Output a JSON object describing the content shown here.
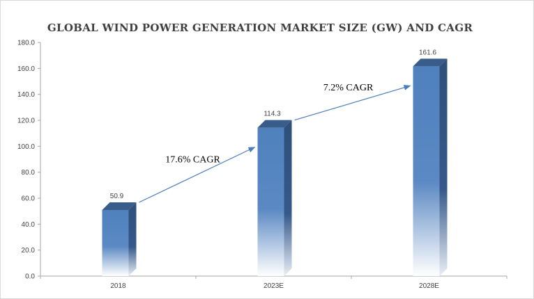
{
  "chart_data": {
    "type": "bar",
    "title": "GLOBAL WIND POWER GENERATION MARKET SIZE (GW) AND CAGR",
    "xlabel": "",
    "ylabel": "",
    "categories": [
      "2018",
      "2023E",
      "2028E"
    ],
    "values": [
      50.9,
      114.3,
      161.6
    ],
    "data_labels": [
      "50.9",
      "114.3",
      "161.6"
    ],
    "ylim": [
      0,
      180
    ],
    "yticks": [
      "0.0",
      "20.0",
      "40.0",
      "60.0",
      "80.0",
      "100.0",
      "120.0",
      "140.0",
      "160.0",
      "180.0"
    ],
    "grid": false,
    "legend": "none",
    "bar_style": "3d-gradient",
    "colors": {
      "bar_front": "#4f81bd",
      "bar_side": "#2f4f7a",
      "bar_top": "#385d8a",
      "arrow": "#4a7ebb",
      "axis": "#a6a6a6"
    },
    "annotations": [
      {
        "text": "17.6% CAGR",
        "from": "2018",
        "to": "2023E"
      },
      {
        "text": "7.2% CAGR",
        "from": "2023E",
        "to": "2028E"
      }
    ]
  }
}
